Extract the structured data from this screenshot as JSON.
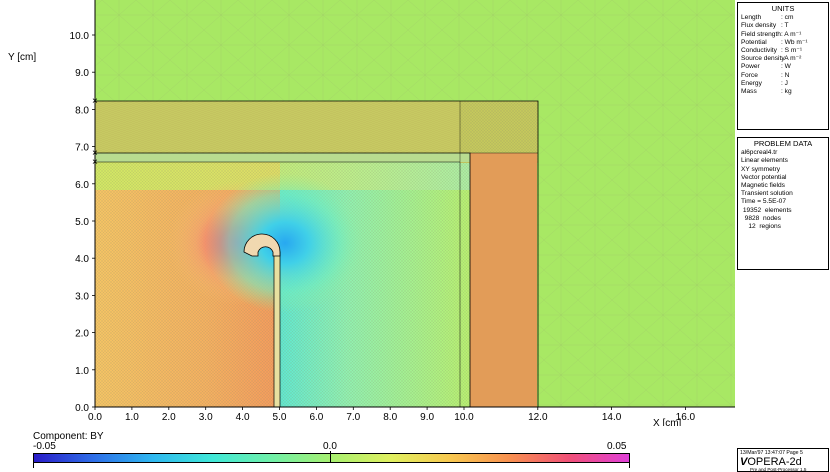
{
  "plot": {
    "y_axis_label": "Y [cm]",
    "x_axis_label": "X [cm]",
    "x_ticks": [
      "0.0",
      "1.0",
      "2.0",
      "3.0",
      "4.0",
      "5.0",
      "6.0",
      "7.0",
      "8.0",
      "9.0",
      "10.0",
      "12.0",
      "14.0",
      "16.0"
    ],
    "y_ticks": [
      "0.0",
      "1.0",
      "2.0",
      "3.0",
      "4.0",
      "5.0",
      "6.0",
      "7.0",
      "8.0",
      "9.0",
      "10.0"
    ]
  },
  "units_panel": {
    "title": "UNITS",
    "rows": [
      {
        "name": "Length",
        "value": ": cm"
      },
      {
        "name": "Flux density",
        "value": ": T"
      },
      {
        "name": "Field strength",
        "value": ": A m⁻¹"
      },
      {
        "name": "Potential",
        "value": ": Wb m⁻¹"
      },
      {
        "name": "Conductivity",
        "value": ": S m⁻¹"
      },
      {
        "name": "Source density",
        "value": ": A m⁻²"
      },
      {
        "name": "Power",
        "value": ": W"
      },
      {
        "name": "Force",
        "value": ": N"
      },
      {
        "name": "Energy",
        "value": ": J"
      },
      {
        "name": "Mass",
        "value": ": kg"
      }
    ]
  },
  "problem_panel": {
    "title": "PROBLEM DATA",
    "lines": [
      "al6pcreal4.tr",
      "Linear elements",
      "XY symmetry",
      "Vector potential",
      "Magnetic fields",
      "Transient solution",
      "Time = 5.5E-07",
      " 19352  elements",
      "  9828  nodes",
      "    12  regions"
    ]
  },
  "colorbar": {
    "title": "Component: BY",
    "min_label": "-0.05",
    "mid_label": "0.0",
    "max_label": "0.05",
    "colors": [
      "#2a1cc8",
      "#2e6ee8",
      "#2fb8f0",
      "#40e8d8",
      "#70f0a8",
      "#a8f070",
      "#e0f060",
      "#f8c850",
      "#f89050",
      "#f05078",
      "#e040d8"
    ]
  },
  "footer": {
    "date": "13/Mar/97 13:47:07 Page  5",
    "logo_v": "V",
    "logo_text": "OPERA-2d",
    "sub": "Pre and Post-Processor 1.5"
  },
  "chart_data": {
    "type": "heatmap",
    "xlabel": "X [cm]",
    "ylabel": "Y [cm]",
    "xlim": [
      0,
      17.5
    ],
    "ylim": [
      0,
      11
    ],
    "component": "BY",
    "range": [
      -0.05,
      0.05
    ]
  }
}
